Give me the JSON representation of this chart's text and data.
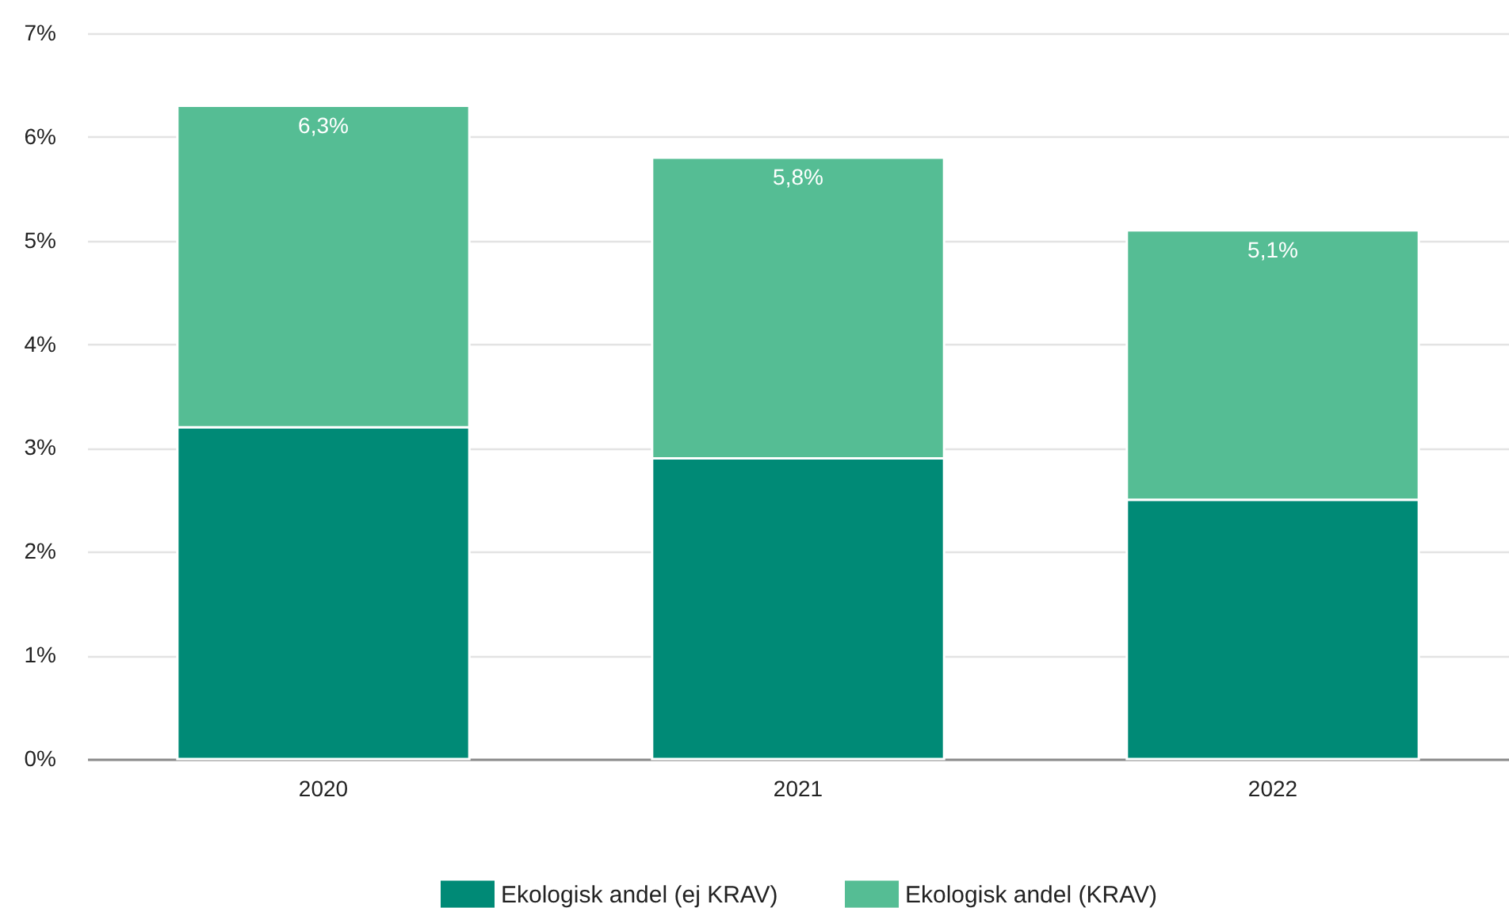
{
  "chart_data": {
    "type": "bar",
    "stacked": true,
    "categories": [
      "2020",
      "2021",
      "2022"
    ],
    "series": [
      {
        "name": "Ekologisk andel (ej KRAV)",
        "color": "#008a76",
        "values": [
          3.2,
          2.9,
          2.5
        ]
      },
      {
        "name": "Ekologisk andel (KRAV)",
        "color": "#55bd94",
        "values": [
          3.1,
          2.9,
          2.6
        ]
      }
    ],
    "totals": [
      "6,3%",
      "5,8%",
      "5,1%"
    ],
    "ylim": [
      0,
      7
    ],
    "yticks": [
      {
        "value": 0,
        "label": "0%"
      },
      {
        "value": 1,
        "label": "1%"
      },
      {
        "value": 2,
        "label": "2%"
      },
      {
        "value": 3,
        "label": "3%"
      },
      {
        "value": 4,
        "label": "4%"
      },
      {
        "value": 5,
        "label": "5%"
      },
      {
        "value": 6,
        "label": "6%"
      },
      {
        "value": 7,
        "label": "7%"
      }
    ],
    "grid": "y",
    "legend": "bottom"
  }
}
